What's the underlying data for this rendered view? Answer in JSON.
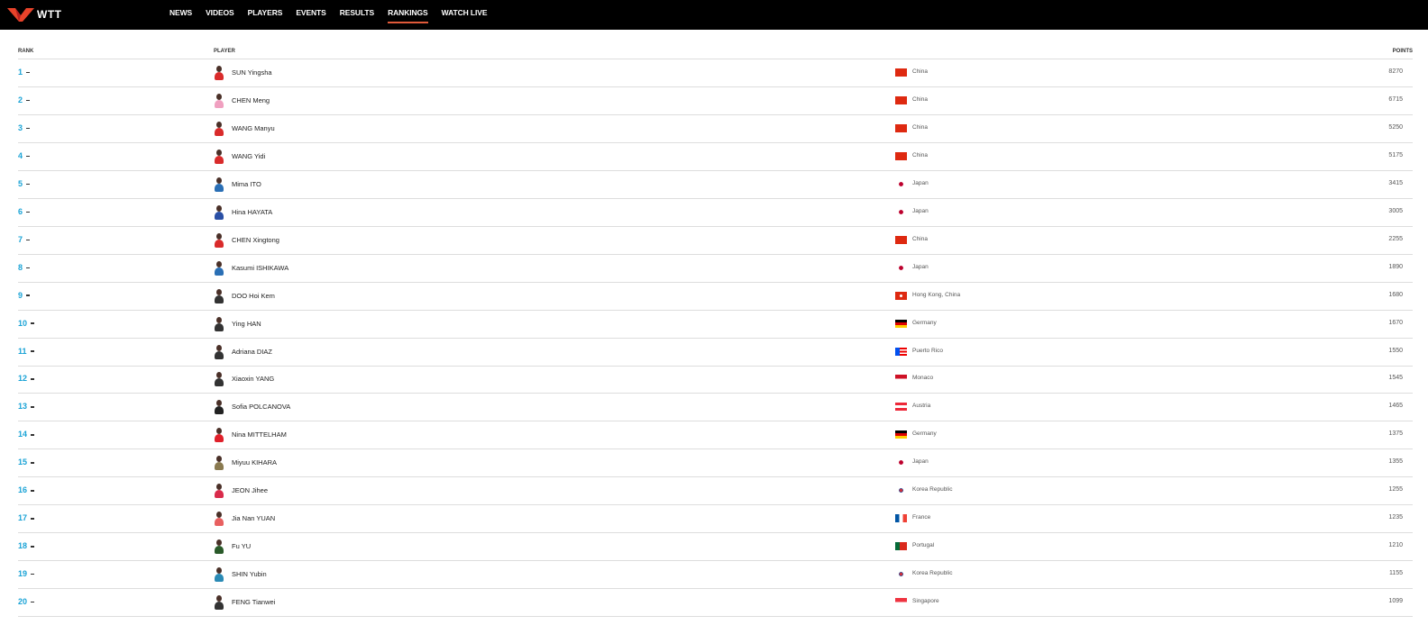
{
  "brand": {
    "name": "WTT",
    "accent": "#e05a3a",
    "rank_color": "#1aa3d6"
  },
  "nav": [
    {
      "label": "NEWS",
      "active": false
    },
    {
      "label": "VIDEOS",
      "active": false
    },
    {
      "label": "PLAYERS",
      "active": false
    },
    {
      "label": "EVENTS",
      "active": false
    },
    {
      "label": "RESULTS",
      "active": false
    },
    {
      "label": "RANKINGS",
      "active": true
    },
    {
      "label": "WATCH LIVE",
      "active": false
    }
  ],
  "table": {
    "headers": {
      "rank": "RANK",
      "player": "PLAYER",
      "points": "POINTS"
    },
    "rows": [
      {
        "rank": "1",
        "name": "SUN Yingsha",
        "country": "China",
        "flag": "cn",
        "points": "8270",
        "kit": "#d92b2b"
      },
      {
        "rank": "2",
        "name": "CHEN Meng",
        "country": "China",
        "flag": "cn",
        "points": "6715",
        "kit": "#f0a0c0"
      },
      {
        "rank": "3",
        "name": "WANG Manyu",
        "country": "China",
        "flag": "cn",
        "points": "5250",
        "kit": "#d92b2b"
      },
      {
        "rank": "4",
        "name": "WANG Yidi",
        "country": "China",
        "flag": "cn",
        "points": "5175",
        "kit": "#d92b2b"
      },
      {
        "rank": "5",
        "name": "Mima ITO",
        "country": "Japan",
        "flag": "jp",
        "points": "3415",
        "kit": "#2a6fb5"
      },
      {
        "rank": "6",
        "name": "Hina HAYATA",
        "country": "Japan",
        "flag": "jp",
        "points": "3005",
        "kit": "#2a4fa5"
      },
      {
        "rank": "7",
        "name": "CHEN Xingtong",
        "country": "China",
        "flag": "cn",
        "points": "2255",
        "kit": "#d92b2b"
      },
      {
        "rank": "8",
        "name": "Kasumi ISHIKAWA",
        "country": "Japan",
        "flag": "jp",
        "points": "1890",
        "kit": "#2a6fb5"
      },
      {
        "rank": "9",
        "name": "DOO Hoi Kem",
        "country": "Hong Kong, China",
        "flag": "hk",
        "points": "1680",
        "kit": "#333"
      },
      {
        "rank": "10",
        "name": "Ying HAN",
        "country": "Germany",
        "flag": "de",
        "points": "1670",
        "kit": "#333"
      },
      {
        "rank": "11",
        "name": "Adriana DIAZ",
        "country": "Puerto Rico",
        "flag": "pr",
        "points": "1550",
        "kit": "#333"
      },
      {
        "rank": "12",
        "name": "Xiaoxin YANG",
        "country": "Monaco",
        "flag": "mc",
        "points": "1545",
        "kit": "#333"
      },
      {
        "rank": "13",
        "name": "Sofia POLCANOVA",
        "country": "Austria",
        "flag": "at",
        "points": "1465",
        "kit": "#222"
      },
      {
        "rank": "14",
        "name": "Nina MITTELHAM",
        "country": "Germany",
        "flag": "de",
        "points": "1375",
        "kit": "#e0202a"
      },
      {
        "rank": "15",
        "name": "Miyuu KIHARA",
        "country": "Japan",
        "flag": "jp",
        "points": "1355",
        "kit": "#8a7a50"
      },
      {
        "rank": "16",
        "name": "JEON Jihee",
        "country": "Korea Republic",
        "flag": "kr",
        "points": "1255",
        "kit": "#d92b4b"
      },
      {
        "rank": "17",
        "name": "Jia Nan YUAN",
        "country": "France",
        "flag": "fr",
        "points": "1235",
        "kit": "#e86060"
      },
      {
        "rank": "18",
        "name": "Fu YU",
        "country": "Portugal",
        "flag": "pt",
        "points": "1210",
        "kit": "#2a5a2a"
      },
      {
        "rank": "19",
        "name": "SHIN Yubin",
        "country": "Korea Republic",
        "flag": "kr",
        "points": "1155",
        "kit": "#2a8ab5"
      },
      {
        "rank": "20",
        "name": "FENG Tianwei",
        "country": "Singapore",
        "flag": "sg",
        "points": "1099",
        "kit": "#333"
      }
    ]
  }
}
